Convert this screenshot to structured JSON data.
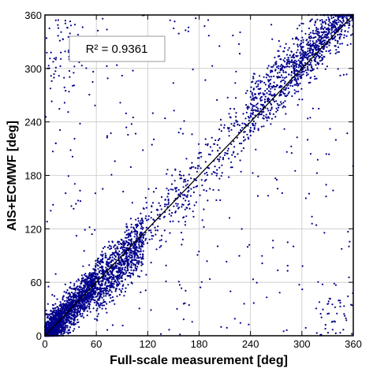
{
  "chart_data": {
    "type": "scatter",
    "title": "",
    "xlabel": "Full-scale measurement [deg]",
    "ylabel": "AIS+ECMWF [deg]",
    "xlim": [
      0,
      360
    ],
    "ylim": [
      0,
      360
    ],
    "xticks": [
      "0",
      "60",
      "120",
      "180",
      "240",
      "300",
      "360"
    ],
    "yticks": [
      "0",
      "60",
      "120",
      "180",
      "240",
      "300",
      "360"
    ],
    "grid": true,
    "legend": "none",
    "annotation": "R² = 0.9361",
    "fit_line": {
      "x": [
        0,
        360
      ],
      "y": [
        0,
        360
      ]
    },
    "point_color": "#00008b",
    "line_color": "#000000",
    "clusters": [
      {
        "x": [
          0,
          60
        ],
        "y": [
          0,
          60
        ],
        "density": "very high"
      },
      {
        "x": [
          60,
          120
        ],
        "y": [
          30,
          120
        ],
        "density": "high"
      },
      {
        "x": [
          240,
          360
        ],
        "y": [
          270,
          360
        ],
        "density": "high"
      },
      {
        "x": [
          120,
          240
        ],
        "y": [
          120,
          260
        ],
        "density": "medium"
      },
      {
        "x": [
          0,
          360
        ],
        "y": [
          0,
          360
        ],
        "density": "low scatter"
      }
    ]
  }
}
